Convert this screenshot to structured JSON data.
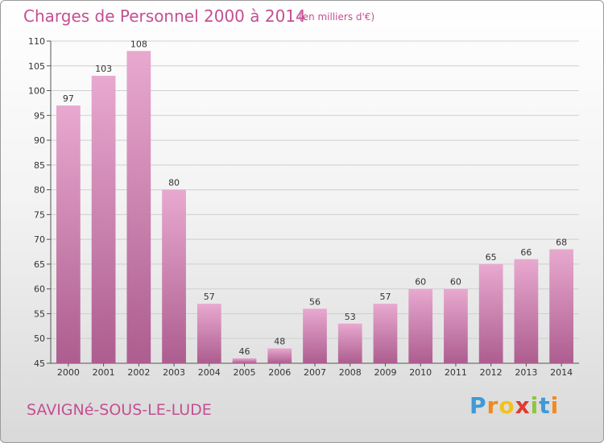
{
  "title": "Charges de Personnel 2000 à 2014",
  "subtitle": "(en milliers d'€)",
  "commune": "SAVIGNé-SOUS-LE-LUDE",
  "brand": {
    "letters": [
      "P",
      "r",
      "o",
      "x",
      "i",
      "t",
      "i"
    ],
    "colors": [
      "#3f9ad6",
      "#f08a1c",
      "#f3c21b",
      "#e03a2f",
      "#8dc63f",
      "#3f9ad6",
      "#f08a1c"
    ]
  },
  "colors": {
    "bar_top": "#e8a9cf",
    "bar_bottom": "#ad5d8f",
    "title": "#c44f92",
    "commune": "#c44f92",
    "grid": "#cfcfcf"
  },
  "chart_data": {
    "type": "bar",
    "title": "Charges de Personnel 2000 à 2014",
    "subtitle": "(en milliers d'€)",
    "categories": [
      "2000",
      "2001",
      "2002",
      "2003",
      "2004",
      "2005",
      "2006",
      "2007",
      "2008",
      "2009",
      "2010",
      "2011",
      "2012",
      "2013",
      "2014"
    ],
    "values": [
      97,
      103,
      108,
      80,
      57,
      46,
      48,
      56,
      53,
      57,
      60,
      60,
      65,
      66,
      68
    ],
    "ylim": [
      45,
      110
    ],
    "yticks": [
      45,
      50,
      55,
      60,
      65,
      70,
      75,
      80,
      85,
      90,
      95,
      100,
      105,
      110
    ],
    "grid": true,
    "legend": "none"
  }
}
